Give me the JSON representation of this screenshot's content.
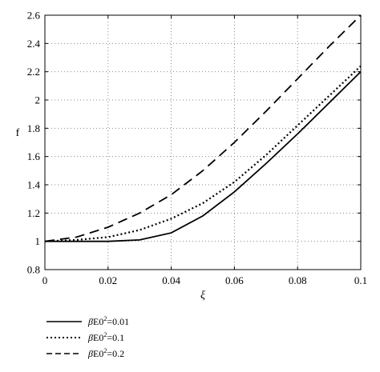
{
  "chart_data": {
    "type": "line",
    "xlabel": "ξ",
    "ylabel": "f",
    "xlim": [
      0,
      0.1
    ],
    "ylim": [
      0.8,
      2.6
    ],
    "xticks": [
      "0",
      "0.02",
      "0.04",
      "0.06",
      "0.08",
      "0.1"
    ],
    "yticks": [
      "0.8",
      "1",
      "1.2",
      "1.4",
      "1.6",
      "1.8",
      "2",
      "2.2",
      "2.4",
      "2.6"
    ],
    "grid": true,
    "legend_position": "bottom-left, below plot",
    "series": [
      {
        "name": "βE0²=0.01",
        "name_parts": {
          "base": "βE0",
          "sup": "2",
          "rest": "=0.01"
        },
        "line_style": "solid",
        "x": [
          0,
          0.01,
          0.02,
          0.03,
          0.04,
          0.05,
          0.06,
          0.07,
          0.08,
          0.09,
          0.1
        ],
        "y": [
          1.0,
          1.0,
          1.0,
          1.01,
          1.06,
          1.18,
          1.35,
          1.55,
          1.76,
          1.98,
          2.2
        ]
      },
      {
        "name": "βE0²=0.1",
        "name_parts": {
          "base": "βE0",
          "sup": "2",
          "rest": "=0.1"
        },
        "line_style": "dotted",
        "x": [
          0,
          0.01,
          0.02,
          0.03,
          0.04,
          0.05,
          0.06,
          0.07,
          0.08,
          0.09,
          0.1
        ],
        "y": [
          1.0,
          1.01,
          1.03,
          1.08,
          1.16,
          1.27,
          1.42,
          1.61,
          1.82,
          2.03,
          2.24
        ]
      },
      {
        "name": "βE0²=0.2",
        "name_parts": {
          "base": "βE0",
          "sup": "2",
          "rest": "=0.2"
        },
        "line_style": "dashed",
        "x": [
          0,
          0.01,
          0.02,
          0.03,
          0.04,
          0.05,
          0.06,
          0.07,
          0.08,
          0.09,
          0.1
        ],
        "y": [
          1.0,
          1.03,
          1.1,
          1.2,
          1.33,
          1.5,
          1.7,
          1.92,
          2.15,
          2.38,
          2.6
        ]
      }
    ]
  }
}
